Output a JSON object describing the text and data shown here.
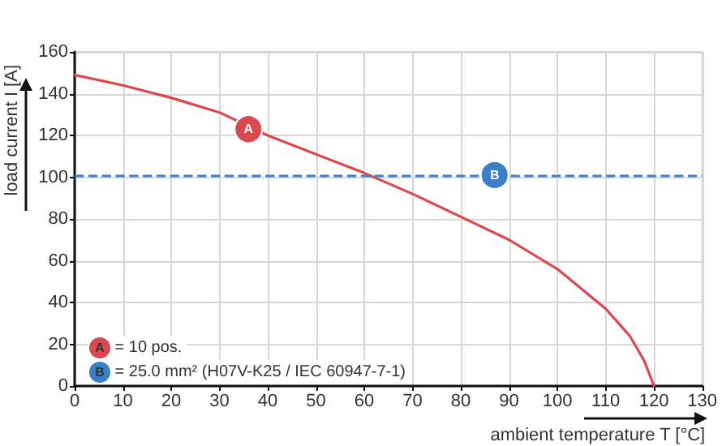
{
  "chart_data": {
    "type": "line",
    "xlabel": "ambient temperature T [°C]",
    "ylabel": "load current I [A]",
    "x": [
      0,
      10,
      20,
      30,
      40,
      50,
      60,
      70,
      80,
      90,
      100,
      110,
      115,
      118,
      120
    ],
    "series": [
      {
        "color": "#d9494f",
        "values": [
          149,
          144,
          138,
          131,
          120,
          111,
          102,
          92,
          81,
          70,
          56,
          37,
          24,
          12,
          0
        ]
      }
    ],
    "xlim": [
      0,
      130
    ],
    "xticks": [
      0,
      10,
      20,
      30,
      40,
      50,
      60,
      70,
      80,
      90,
      100,
      110,
      120,
      130
    ],
    "ylim": [
      0,
      160
    ],
    "yticks": [
      0,
      20,
      40,
      60,
      80,
      100,
      120,
      140,
      160
    ],
    "ref_lines": [
      {
        "axis": "y",
        "value": 101,
        "label": null,
        "color": "#3c7fc9",
        "line_style": "dashed"
      }
    ],
    "annotations": [
      {
        "text": "A",
        "x": 36,
        "y": 123
      },
      {
        "text": "B",
        "x": 87,
        "y": 101
      },
      "A = 10 pos.",
      "B = 25.0 mm² (H07V-K25 / IEC 60947-7-1)"
    ],
    "grid": true,
    "marker": "none",
    "line_style": "solid"
  }
}
